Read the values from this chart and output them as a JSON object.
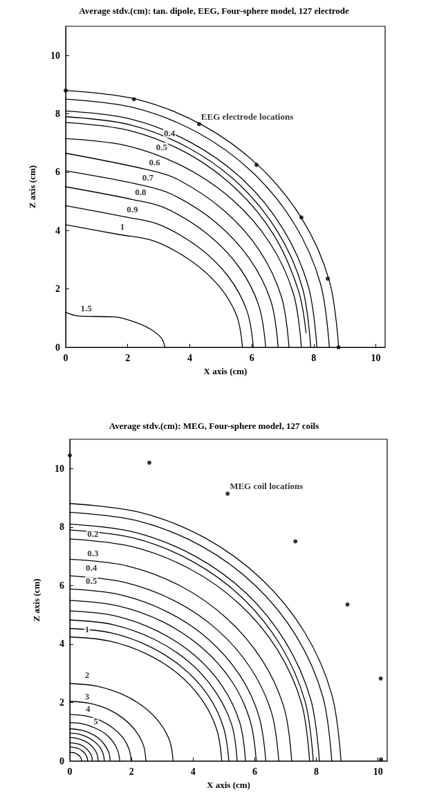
{
  "chart_data": [
    {
      "type": "line",
      "title": "Average stdv.(cm): tan. dipole, EEG, Four-sphere model, 127 electrode",
      "xlabel": "X axis (cm)",
      "ylabel": "Z axis (cm)",
      "xlim": [
        0,
        10.3
      ],
      "ylim": [
        0,
        11
      ],
      "xticks": [
        0,
        2,
        4,
        6,
        8,
        10
      ],
      "yticks": [
        0,
        2,
        4,
        6,
        8,
        10
      ],
      "grid": false,
      "line_style": "solid",
      "marker": "none",
      "series": [
        {
          "color": "#000000",
          "x": [
            8.8,
            8.5,
            7.62,
            6.22,
            4.4,
            2.28,
            0
          ],
          "values": [
            0,
            2.28,
            4.4,
            6.22,
            7.62,
            8.5,
            8.8
          ]
        },
        {
          "color": "#000000",
          "x": [
            8.5,
            8.21,
            7.36,
            6.01,
            4.25,
            2.2,
            0
          ],
          "values": [
            0,
            2.2,
            4.25,
            6.01,
            7.36,
            8.21,
            8.5
          ]
        },
        {
          "color": "#000000",
          "x": [
            8.1,
            7.82,
            7.01,
            5.73,
            4.05,
            2.1,
            0
          ],
          "values": [
            0,
            2.1,
            4.05,
            5.73,
            7.01,
            7.82,
            8.1
          ]
        },
        {
          "color": "#000000",
          "x": [
            7.9,
            7.63,
            6.84,
            5.59,
            3.95,
            2.05,
            0
          ],
          "values": [
            0,
            2.05,
            3.95,
            5.59,
            6.84,
            7.63,
            7.9
          ]
        },
        {
          "color": "#000000",
          "x": [
            7.75,
            7.49,
            6.71,
            5.48,
            3.88,
            2.01,
            0
          ],
          "values": [
            0.5,
            1.99,
            3.85,
            5.44,
            6.67,
            7.44,
            7.7
          ]
        },
        {
          "color": "#000000",
          "x": [
            7.6,
            7.34,
            6.58,
            5.37,
            3.8,
            1.97,
            0
          ],
          "values": [
            0,
            1.85,
            3.58,
            5.06,
            6.19,
            6.91,
            7.15
          ]
        },
        {
          "color": "#000000",
          "x": [
            7.2,
            6.96,
            6.24,
            5.09,
            3.6,
            2.62,
            0
          ],
          "values": [
            0,
            1.72,
            3.33,
            4.7,
            5.76,
            6.09,
            6.65
          ]
        },
        {
          "color": "#000000",
          "x": [
            6.85,
            6.62,
            5.93,
            4.84,
            3.43,
            2.4,
            0
          ],
          "values": [
            0,
            1.57,
            3.03,
            4.28,
            5.24,
            5.57,
            6.05
          ]
        },
        {
          "color": "#000000",
          "x": [
            6.45,
            6.23,
            5.59,
            4.56,
            3.23,
            2.17,
            0
          ],
          "values": [
            0,
            1.42,
            2.75,
            3.89,
            4.76,
            5.06,
            5.5
          ]
        },
        {
          "color": "#000000",
          "x": [
            6.05,
            5.84,
            5.24,
            4.28,
            3.03,
            1.9,
            0
          ],
          "values": [
            0,
            1.26,
            2.43,
            3.43,
            4.2,
            4.47,
            4.85
          ]
        },
        {
          "color": "#000000",
          "x": [
            5.7,
            5.51,
            4.94,
            4.03,
            2.85,
            1.69,
            0
          ],
          "values": [
            0,
            1.09,
            2.1,
            2.97,
            3.64,
            3.87,
            4.2
          ]
        },
        {
          "color": "#000000",
          "x": [
            3.2,
            3.09,
            2.77,
            2.26,
            1.6,
            0.41,
            0
          ],
          "values": [
            0,
            0.31,
            0.6,
            0.85,
            1.04,
            1.07,
            1.2
          ]
        },
        {
          "type": "scatter",
          "marker": "circle",
          "color": "#000000",
          "x": [
            0,
            2.2,
            4.3,
            6.15,
            7.6,
            8.45,
            8.8
          ],
          "values": [
            8.8,
            8.5,
            7.65,
            6.25,
            4.45,
            2.35,
            0
          ]
        }
      ],
      "annotations": [
        {
          "text": "EEG electrode locations",
          "x": 4.3,
          "y": 7.65
        },
        {
          "text": "0.4",
          "x": 3.1,
          "y": 7.07
        },
        {
          "text": "0.5",
          "x": 2.85,
          "y": 6.6
        },
        {
          "text": "0.6",
          "x": 2.62,
          "y": 6.09
        },
        {
          "text": "0.7",
          "x": 2.4,
          "y": 5.57
        },
        {
          "text": "0.8",
          "x": 2.17,
          "y": 5.06
        },
        {
          "text": "0.9",
          "x": 1.9,
          "y": 4.47
        },
        {
          "text": "1",
          "x": 1.69,
          "y": 3.87
        },
        {
          "text": "1.5",
          "x": 0.41,
          "y": 1.07
        }
      ]
    },
    {
      "type": "line",
      "title": "Average stdv.(cm): MEG, Four-sphere model, 127 coils",
      "xlabel": "X axis (cm)",
      "ylabel": "Z axis (cm)",
      "xlim": [
        0,
        10.3
      ],
      "ylim": [
        0,
        11
      ],
      "xticks": [
        0,
        2,
        4,
        6,
        8,
        10
      ],
      "yticks": [
        0,
        2,
        4,
        6,
        8,
        10
      ],
      "grid": false,
      "line_style": "solid",
      "marker": "none",
      "series": [
        {
          "color": "#000000",
          "x": [
            8.8,
            8.5,
            7.62,
            6.22,
            4.4,
            2.28,
            0
          ],
          "values": [
            0,
            2.28,
            4.4,
            6.22,
            7.62,
            8.5,
            8.8
          ]
        },
        {
          "color": "#000000",
          "x": [
            8.5,
            8.21,
            7.36,
            6.01,
            4.25,
            2.2,
            0
          ],
          "values": [
            0,
            2.2,
            4.25,
            6.01,
            7.36,
            8.21,
            8.5
          ]
        },
        {
          "color": "#000000",
          "x": [
            8.1,
            7.82,
            7.01,
            5.73,
            4.05,
            2.1,
            0
          ],
          "values": [
            0,
            2.1,
            4.05,
            5.73,
            7.01,
            7.82,
            8.1
          ]
        },
        {
          "color": "#000000",
          "x": [
            7.9,
            7.63,
            6.84,
            5.59,
            3.95,
            2.05,
            0
          ],
          "values": [
            0,
            2.05,
            3.95,
            5.59,
            6.84,
            7.63,
            7.9
          ]
        },
        {
          "color": "#000000",
          "x": [
            7.78,
            7.52,
            6.74,
            5.5,
            3.89,
            2.02,
            0
          ],
          "values": [
            0,
            1.97,
            3.8,
            5.37,
            6.57,
            7.33,
            7.59
          ]
        },
        {
          "color": "#000000",
          "x": [
            7.2,
            6.96,
            6.24,
            5.09,
            3.6,
            1.86,
            0
          ],
          "values": [
            0,
            1.79,
            3.45,
            4.88,
            5.98,
            6.67,
            6.9
          ]
        },
        {
          "color": "#000000",
          "x": [
            6.78,
            6.55,
            5.87,
            4.79,
            3.39,
            1.76,
            0
          ],
          "values": [
            0,
            1.64,
            3.17,
            4.48,
            5.48,
            6.11,
            6.33
          ]
        },
        {
          "color": "#000000",
          "x": [
            6.36,
            6.14,
            5.51,
            4.5,
            3.18,
            1.65,
            0
          ],
          "values": [
            0,
            1.52,
            2.94,
            4.16,
            5.09,
            5.68,
            5.88
          ]
        },
        {
          "color": "#000000",
          "x": [
            6.05,
            5.84,
            5.24,
            4.28,
            3.03,
            1.57,
            0
          ],
          "values": [
            0,
            1.42,
            2.75,
            3.88,
            4.75,
            5.3,
            5.49
          ]
        },
        {
          "color": "#000000",
          "x": [
            5.7,
            5.51,
            4.94,
            4.03,
            2.85,
            1.48,
            0
          ],
          "values": [
            0,
            1.33,
            2.57,
            3.63,
            4.44,
            4.96,
            5.13
          ]
        },
        {
          "color": "#000000",
          "x": [
            5.43,
            5.25,
            4.7,
            3.84,
            2.72,
            1.41,
            0
          ],
          "values": [
            0,
            1.25,
            2.41,
            3.41,
            4.17,
            4.66,
            4.82
          ]
        },
        {
          "color": "#000000",
          "x": [
            5.16,
            4.98,
            4.47,
            3.65,
            2.58,
            1.34,
            0
          ],
          "values": [
            0,
            1.17,
            2.27,
            3.2,
            3.92,
            4.38,
            4.53
          ]
        },
        {
          "color": "#000000",
          "x": [
            4.93,
            4.76,
            4.27,
            3.49,
            2.47,
            1.28,
            0
          ],
          "values": [
            0,
            1.1,
            2.12,
            3.0,
            3.67,
            4.1,
            4.24
          ]
        },
        {
          "color": "#000000",
          "x": [
            3.35,
            3.24,
            2.9,
            2.37,
            1.68,
            0.87,
            0
          ],
          "values": [
            0,
            0.69,
            1.33,
            1.87,
            2.29,
            2.56,
            2.65
          ]
        },
        {
          "color": "#000000",
          "x": [
            2.47,
            2.39,
            2.14,
            1.75,
            1.24,
            0.64,
            0
          ],
          "values": [
            0,
            0.53,
            1.02,
            1.44,
            1.77,
            1.97,
            2.04
          ]
        },
        {
          "color": "#000000",
          "x": [
            1.99,
            1.92,
            1.72,
            1.41,
            1.0,
            0.52,
            0
          ],
          "values": [
            0,
            0.41,
            0.8,
            1.12,
            1.38,
            1.54,
            1.59
          ]
        },
        {
          "color": "#000000",
          "x": [
            1.62,
            1.56,
            1.4,
            1.15,
            0.81,
            0.42,
            0
          ],
          "values": [
            0,
            0.34,
            0.66,
            0.93,
            1.13,
            1.27,
            1.31
          ]
        },
        {
          "color": "#000000",
          "x": [
            1.31,
            1.27,
            1.13,
            0.93,
            0.66,
            0.34,
            0
          ],
          "values": [
            0,
            0.28,
            0.55,
            0.78,
            0.95,
            1.06,
            1.1
          ]
        },
        {
          "color": "#000000",
          "x": [
            1.12,
            1.08,
            0.97,
            0.79,
            0.56,
            0.29,
            0
          ],
          "values": [
            0,
            0.25,
            0.48,
            0.67,
            0.82,
            0.92,
            0.95
          ]
        },
        {
          "color": "#000000",
          "x": [
            0.92,
            0.89,
            0.8,
            0.65,
            0.46,
            0.24,
            0
          ],
          "values": [
            0,
            0.21,
            0.4,
            0.57,
            0.69,
            0.77,
            0.8
          ]
        },
        {
          "color": "#000000",
          "x": [
            0.73,
            0.71,
            0.63,
            0.52,
            0.37,
            0.19,
            0
          ],
          "values": [
            0,
            0.16,
            0.31,
            0.44,
            0.54,
            0.6,
            0.62
          ]
        },
        {
          "color": "#000000",
          "x": [
            0.58,
            0.56,
            0.5,
            0.41,
            0.29,
            0.15,
            0
          ],
          "values": [
            0,
            0.12,
            0.24,
            0.34,
            0.42,
            0.46,
            0.48
          ]
        },
        {
          "color": "#000000",
          "x": [
            0.38,
            0.37,
            0.33,
            0.27,
            0.19,
            0.1,
            0
          ],
          "values": [
            0,
            0.08,
            0.15,
            0.21,
            0.26,
            0.29,
            0.3
          ]
        },
        {
          "type": "scatter",
          "marker": "circle",
          "color": "#000000",
          "x": [
            0,
            2.58,
            5.12,
            7.32,
            9.01,
            10.09,
            10.1
          ],
          "values": [
            10.45,
            10.2,
            9.14,
            7.51,
            5.35,
            2.82,
            0.05
          ]
        }
      ],
      "annotations": [
        {
          "text": "MEG coil locations",
          "x": 5.12,
          "y": 9.14
        },
        {
          "text": "0.2",
          "x": 0.5,
          "y": 7.52
        },
        {
          "text": "0.3",
          "x": 0.5,
          "y": 6.85
        },
        {
          "text": "0.4",
          "x": 0.45,
          "y": 6.35
        },
        {
          "text": "0.5",
          "x": 0.45,
          "y": 5.9
        },
        {
          "text": "1",
          "x": 0.42,
          "y": 4.24
        },
        {
          "text": "2",
          "x": 0.42,
          "y": 2.68
        },
        {
          "text": "3",
          "x": 0.42,
          "y": 1.96
        },
        {
          "text": "4",
          "x": 0.45,
          "y": 1.53
        },
        {
          "text": "5",
          "x": 0.7,
          "y": 1.1
        }
      ]
    }
  ]
}
